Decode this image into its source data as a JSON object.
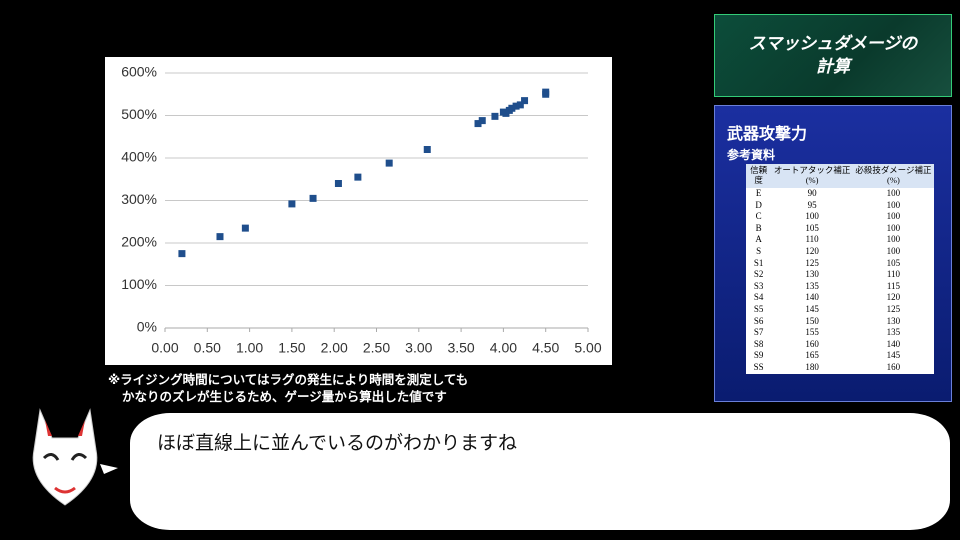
{
  "chart_data": {
    "type": "scatter",
    "x": [
      0.2,
      0.65,
      0.95,
      1.5,
      1.75,
      2.05,
      2.28,
      2.65,
      3.1,
      3.7,
      3.75,
      3.9,
      4.0,
      4.03,
      4.07,
      4.1,
      4.15,
      4.2,
      4.25,
      4.5,
      4.5
    ],
    "values": [
      175,
      215,
      235,
      292,
      305,
      340,
      355,
      388,
      420,
      481,
      488,
      498,
      508,
      505,
      512,
      517,
      522,
      525,
      535,
      550,
      555
    ],
    "color": "#1f4e8c",
    "xlim": [
      0,
      5
    ],
    "ylim": [
      0,
      600
    ],
    "xticks": [
      {
        "value": 0,
        "label": "0.00"
      },
      {
        "value": 0.5,
        "label": "0.50"
      },
      {
        "value": 1,
        "label": "1.00"
      },
      {
        "value": 1.5,
        "label": "1.50"
      },
      {
        "value": 2,
        "label": "2.00"
      },
      {
        "value": 2.5,
        "label": "2.50"
      },
      {
        "value": 3,
        "label": "3.00"
      },
      {
        "value": 3.5,
        "label": "3.50"
      },
      {
        "value": 4,
        "label": "4.00"
      },
      {
        "value": 4.5,
        "label": "4.50"
      },
      {
        "value": 5,
        "label": "5.00"
      }
    ],
    "yticks": [
      {
        "value": 0,
        "label": "0%"
      },
      {
        "value": 100,
        "label": "100%"
      },
      {
        "value": 200,
        "label": "200%"
      },
      {
        "value": 300,
        "label": "300%"
      },
      {
        "value": 400,
        "label": "400%"
      },
      {
        "value": 500,
        "label": "500%"
      },
      {
        "value": 600,
        "label": "600%"
      }
    ],
    "grid": true
  },
  "note": [
    "※ライジング時間についてはラグの発生により時間を測定しても",
    "かなりのズレが生じるため、ゲージ量から算出した値です"
  ],
  "panel": {
    "title": [
      "スマッシュダメージの",
      "計算"
    ],
    "heading": "武器攻撃力",
    "subheading": "参考資料",
    "table": {
      "header": [
        "信頼度",
        "オートアタック補正(%)",
        "必殺技ダメージ補正(%)"
      ],
      "rows": [
        [
          "E",
          90,
          100
        ],
        [
          "D",
          95,
          100
        ],
        [
          "C",
          100,
          100
        ],
        [
          "B",
          105,
          100
        ],
        [
          "A",
          110,
          100
        ],
        [
          "S",
          120,
          100
        ],
        [
          "S1",
          125,
          105
        ],
        [
          "S2",
          130,
          110
        ],
        [
          "S3",
          135,
          115
        ],
        [
          "S4",
          140,
          120
        ],
        [
          "S5",
          145,
          125
        ],
        [
          "S6",
          150,
          130
        ],
        [
          "S7",
          155,
          135
        ],
        [
          "S8",
          160,
          140
        ],
        [
          "S9",
          165,
          145
        ],
        [
          "SS",
          180,
          160
        ]
      ]
    }
  },
  "dialogue": "ほぼ直線上に並んでいるのがわかりますね"
}
